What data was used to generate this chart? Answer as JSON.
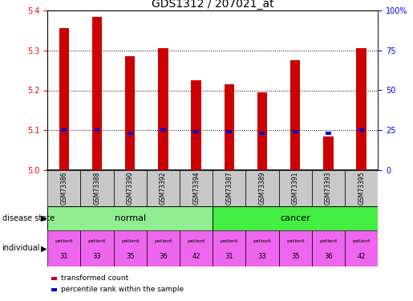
{
  "title": "GDS1312 / 207021_at",
  "samples": [
    "GSM73386",
    "GSM73388",
    "GSM73390",
    "GSM73392",
    "GSM73394",
    "GSM73387",
    "GSM73389",
    "GSM73391",
    "GSM73393",
    "GSM73395"
  ],
  "transformed_counts": [
    5.355,
    5.385,
    5.285,
    5.305,
    5.225,
    5.215,
    5.195,
    5.275,
    5.085,
    5.305
  ],
  "percentile_ranks": [
    25,
    25,
    23,
    25,
    24,
    24,
    23,
    24,
    23,
    25
  ],
  "disease_state": [
    "normal",
    "normal",
    "normal",
    "normal",
    "normal",
    "cancer",
    "cancer",
    "cancer",
    "cancer",
    "cancer"
  ],
  "individuals": [
    "31",
    "33",
    "35",
    "36",
    "42",
    "31",
    "33",
    "35",
    "36",
    "42"
  ],
  "y_min": 5.0,
  "y_max": 5.4,
  "y_ticks": [
    5.0,
    5.1,
    5.2,
    5.3,
    5.4
  ],
  "right_y_ticks": [
    0,
    25,
    50,
    75,
    100
  ],
  "bar_color": "#cc0000",
  "percentile_color": "#0000cc",
  "normal_color": "#90ee90",
  "cancer_color": "#44ee44",
  "individual_color": "#ee66ee",
  "sample_bg_color": "#c8c8c8",
  "title_fontsize": 10,
  "tick_fontsize": 7,
  "label_fontsize": 7,
  "bar_width": 0.3
}
